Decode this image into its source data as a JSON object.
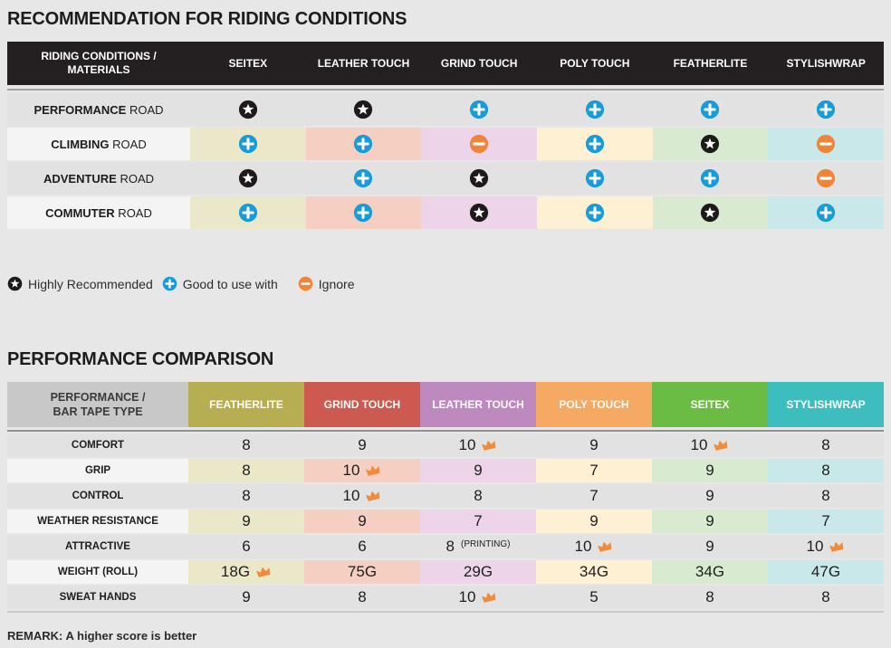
{
  "colors": {
    "page_bg": "#e7e7e7",
    "table1_header_bg": "#241f20",
    "plain_row_bg": "#e2e2e2",
    "label_lite_bg": "#f4f4f4",
    "star_badge": "#1e1a1b",
    "plus_badge": "#189cd9",
    "minus_badge": "#f0853a",
    "crown": "#ef8b3b"
  },
  "section1": {
    "title": "RECOMMENDATION FOR RIDING CONDITIONS",
    "table": {
      "corner": {
        "line1": "RIDING CONDITIONS /",
        "line2": "MATERIALS"
      },
      "columns": [
        {
          "label": "SEITEX",
          "tint": "#eae8c8"
        },
        {
          "label": "LEATHER TOUCH",
          "tint": "#f6cfc3"
        },
        {
          "label": "GRIND TOUCH",
          "tint": "#eed4e8"
        },
        {
          "label": "POLY TOUCH",
          "tint": "#fdf0d3"
        },
        {
          "label": "FEATHERLITE",
          "tint": "#d8ebd1"
        },
        {
          "label": "STYLISHWRAP",
          "tint": "#c9e8e9"
        }
      ],
      "rows": [
        {
          "label_bold": "PERFORMANCE",
          "label_rest": "ROAD",
          "tinted": false,
          "icons": [
            "star",
            "star",
            "plus",
            "plus",
            "plus",
            "plus"
          ]
        },
        {
          "label_bold": "CLIMBING",
          "label_rest": "ROAD",
          "tinted": true,
          "icons": [
            "plus",
            "plus",
            "minus",
            "plus",
            "star",
            "minus"
          ]
        },
        {
          "label_bold": "ADVENTURE",
          "label_rest": "ROAD",
          "tinted": false,
          "icons": [
            "star",
            "plus",
            "star",
            "plus",
            "plus",
            "minus"
          ]
        },
        {
          "label_bold": "COMMUTER",
          "label_rest": "ROAD",
          "tinted": true,
          "icons": [
            "plus",
            "plus",
            "star",
            "plus",
            "star",
            "plus"
          ]
        }
      ]
    },
    "legend": [
      {
        "icon": "star",
        "label": "Highly Recommended"
      },
      {
        "icon": "plus",
        "label": "Good to use with"
      },
      {
        "icon": "minus",
        "label": "Ignore"
      }
    ]
  },
  "section2": {
    "title": "PERFORMANCE COMPARISON",
    "table": {
      "corner": {
        "line1": "PERFORMANCE /",
        "line2": "BAR TAPE TYPE"
      },
      "columns": [
        {
          "label": "FEATHERLITE",
          "color": "#b7ae52",
          "tint": "#eae8c8"
        },
        {
          "label": "GRIND TOUCH",
          "color": "#cd5a50",
          "tint": "#f6cfc3"
        },
        {
          "label": "LEATHER TOUCH",
          "color": "#bd89be",
          "tint": "#eed4e8"
        },
        {
          "label": "POLY TOUCH",
          "color": "#f6a963",
          "tint": "#fdf0d3"
        },
        {
          "label": "SEITEX",
          "color": "#6bbc45",
          "tint": "#d8ebd1"
        },
        {
          "label": "STYLISHWRAP",
          "color": "#3ebdbf",
          "tint": "#c9e8e9"
        }
      ],
      "rows": [
        {
          "label": "COMFORT",
          "tinted": false,
          "cells": [
            {
              "value": "8"
            },
            {
              "value": "9"
            },
            {
              "value": "10",
              "crown": true
            },
            {
              "value": "9"
            },
            {
              "value": "10",
              "crown": true
            },
            {
              "value": "8"
            }
          ]
        },
        {
          "label": "GRIP",
          "tinted": true,
          "cells": [
            {
              "value": "8"
            },
            {
              "value": "10",
              "crown": true
            },
            {
              "value": "9"
            },
            {
              "value": "7"
            },
            {
              "value": "9"
            },
            {
              "value": "8"
            }
          ]
        },
        {
          "label": "CONTROL",
          "tinted": false,
          "cells": [
            {
              "value": "8"
            },
            {
              "value": "10",
              "crown": true
            },
            {
              "value": "8"
            },
            {
              "value": "7"
            },
            {
              "value": "9"
            },
            {
              "value": "8"
            }
          ]
        },
        {
          "label": "WEATHER RESISTANCE",
          "tinted": true,
          "cells": [
            {
              "value": "9"
            },
            {
              "value": "9"
            },
            {
              "value": "7"
            },
            {
              "value": "9"
            },
            {
              "value": "9"
            },
            {
              "value": "7"
            }
          ]
        },
        {
          "label": "ATTRACTIVE",
          "tinted": false,
          "cells": [
            {
              "value": "6"
            },
            {
              "value": "6"
            },
            {
              "value": "8",
              "note": "(PRINTING)"
            },
            {
              "value": "10",
              "crown": true
            },
            {
              "value": "9"
            },
            {
              "value": "10",
              "crown": true
            }
          ]
        },
        {
          "label": "WEIGHT (ROLL)",
          "tinted": true,
          "cells": [
            {
              "value": "18G",
              "crown": true
            },
            {
              "value": "75G"
            },
            {
              "value": "29G"
            },
            {
              "value": "34G"
            },
            {
              "value": "34G"
            },
            {
              "value": "47G"
            }
          ]
        },
        {
          "label": "SWEAT HANDS",
          "tinted": false,
          "cells": [
            {
              "value": "9"
            },
            {
              "value": "8"
            },
            {
              "value": "10",
              "crown": true
            },
            {
              "value": "5"
            },
            {
              "value": "8"
            },
            {
              "value": "8"
            }
          ]
        }
      ]
    },
    "remark": "REMARK: A higher score is better"
  },
  "chart_data": [
    {
      "type": "table",
      "title": "RECOMMENDATION FOR RIDING CONDITIONS",
      "columns": [
        "RIDING CONDITIONS / MATERIALS",
        "SEITEX",
        "LEATHER TOUCH",
        "GRIND TOUCH",
        "POLY TOUCH",
        "FEATHERLITE",
        "STYLISHWRAP"
      ],
      "legend": {
        "star": "Highly Recommended",
        "plus": "Good to use with",
        "minus": "Ignore"
      },
      "rows": [
        [
          "PERFORMANCE ROAD",
          "star",
          "star",
          "plus",
          "plus",
          "plus",
          "plus"
        ],
        [
          "CLIMBING ROAD",
          "plus",
          "plus",
          "minus",
          "plus",
          "star",
          "minus"
        ],
        [
          "ADVENTURE ROAD",
          "star",
          "plus",
          "star",
          "plus",
          "plus",
          "minus"
        ],
        [
          "COMMUTER ROAD",
          "plus",
          "plus",
          "star",
          "plus",
          "star",
          "plus"
        ]
      ]
    },
    {
      "type": "table",
      "title": "PERFORMANCE COMPARISON",
      "columns": [
        "PERFORMANCE / BAR TAPE TYPE",
        "FEATHERLITE",
        "GRIND TOUCH",
        "LEATHER TOUCH",
        "POLY TOUCH",
        "SEITEX",
        "STYLISHWRAP"
      ],
      "note": "crown = best in row; REMARK: A higher score is better",
      "rows": [
        [
          "COMFORT",
          "8",
          "9",
          "10 (crown)",
          "9",
          "10 (crown)",
          "8"
        ],
        [
          "GRIP",
          "8",
          "10 (crown)",
          "9",
          "7",
          "9",
          "8"
        ],
        [
          "CONTROL",
          "8",
          "10 (crown)",
          "8",
          "7",
          "9",
          "8"
        ],
        [
          "WEATHER RESISTANCE",
          "9",
          "9",
          "7",
          "9",
          "9",
          "7"
        ],
        [
          "ATTRACTIVE",
          "6",
          "6",
          "8 (PRINTING)",
          "10 (crown)",
          "9",
          "10 (crown)"
        ],
        [
          "WEIGHT (ROLL)",
          "18G (crown)",
          "75G",
          "29G",
          "34G",
          "34G",
          "47G"
        ],
        [
          "SWEAT HANDS",
          "9",
          "8",
          "10 (crown)",
          "5",
          "8",
          "8"
        ]
      ]
    }
  ]
}
